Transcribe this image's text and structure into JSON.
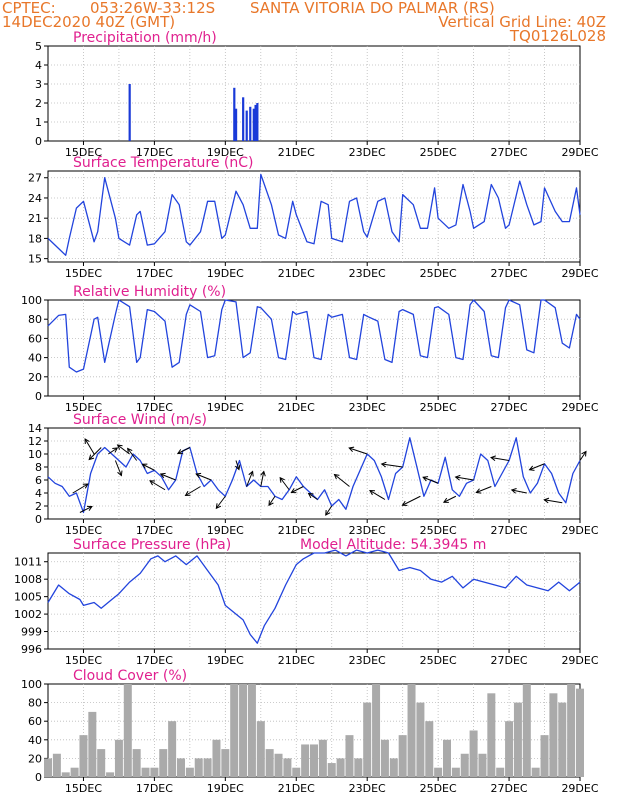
{
  "header": {
    "line1_left": "CPTEC:",
    "line1_coords": "053:26W-33:12S",
    "line1_location": "SANTA VITORIA DO PALMAR (RS)",
    "line2_left": "14DEC2020 40Z (GMT)",
    "line2_right": "Vertical Grid Line: 40Z",
    "line3_right": "TQ0126L028"
  },
  "x_ticks": [
    "15DEC",
    "17DEC",
    "19DEC",
    "21DEC",
    "23DEC",
    "25DEC",
    "27DEC",
    "29DEC"
  ],
  "colors": {
    "header": "#e8772a",
    "title": "#e0208f",
    "line": "#2244dd",
    "bar": "#1a3ad8",
    "cloud": "#aaaaaa",
    "grid": "#bbbbbb"
  },
  "chart_data": [
    {
      "type": "bar",
      "title": "Precipitation (mm/h)",
      "x_ticks": [
        "15DEC",
        "17DEC",
        "19DEC",
        "21DEC",
        "23DEC",
        "25DEC",
        "27DEC",
        "29DEC"
      ],
      "yticks": [
        "0",
        "1",
        "2",
        "3",
        "4",
        "5"
      ],
      "ylim": [
        0,
        5
      ],
      "x": [
        16.3,
        19.25,
        19.3,
        19.5,
        19.6,
        19.7,
        19.8,
        19.85,
        19.9
      ],
      "values": [
        3.0,
        2.8,
        1.7,
        2.3,
        1.6,
        1.8,
        1.7,
        1.9,
        2.0
      ]
    },
    {
      "type": "line",
      "title": "Surface Temperature (nC)",
      "x_ticks": [
        "15DEC",
        "17DEC",
        "19DEC",
        "21DEC",
        "23DEC",
        "25DEC",
        "27DEC",
        "29DEC"
      ],
      "yticks": [
        "15",
        "18",
        "21",
        "24",
        "27"
      ],
      "ylim": [
        14.5,
        28
      ],
      "x": [
        14.0,
        14.3,
        14.5,
        14.6,
        14.8,
        15.0,
        15.3,
        15.4,
        15.6,
        15.9,
        16.0,
        16.3,
        16.5,
        16.6,
        16.8,
        17.0,
        17.3,
        17.5,
        17.7,
        17.9,
        18.0,
        18.3,
        18.5,
        18.7,
        18.9,
        19.0,
        19.3,
        19.5,
        19.7,
        19.9,
        20.0,
        20.3,
        20.5,
        20.7,
        20.9,
        21.0,
        21.3,
        21.5,
        21.7,
        21.9,
        22.0,
        22.3,
        22.5,
        22.7,
        22.9,
        23.0,
        23.3,
        23.5,
        23.7,
        23.9,
        24.0,
        24.3,
        24.5,
        24.7,
        24.9,
        25.0,
        25.3,
        25.5,
        25.7,
        25.9,
        26.0,
        26.3,
        26.5,
        26.7,
        26.9,
        27.0,
        27.3,
        27.5,
        27.7,
        27.9,
        28.0,
        28.3,
        28.5,
        28.7,
        28.9,
        29.0
      ],
      "values": [
        18,
        16.5,
        15.5,
        18,
        22.5,
        23.5,
        17.5,
        19,
        27,
        21,
        18,
        17,
        21.5,
        22,
        17,
        17.2,
        19,
        24.5,
        23,
        17.5,
        17,
        19,
        23.5,
        23.5,
        18,
        18.5,
        25,
        23,
        19.5,
        19.5,
        27.5,
        23,
        18.5,
        18,
        23.5,
        21.5,
        17.5,
        17.2,
        23.5,
        23,
        18,
        17.5,
        23.5,
        24,
        19,
        18.2,
        23.5,
        24,
        19,
        17.5,
        24.5,
        23,
        19.5,
        19.5,
        25.5,
        21,
        19.5,
        20,
        26,
        22,
        19.5,
        20.5,
        26,
        24,
        19.5,
        20,
        26.5,
        23,
        20,
        20.5,
        25.5,
        22,
        20.5,
        20.5,
        25.5,
        21.5
      ]
    },
    {
      "type": "line",
      "title": "Relative Humidity (%)",
      "x_ticks": [
        "15DEC",
        "17DEC",
        "19DEC",
        "21DEC",
        "23DEC",
        "25DEC",
        "27DEC",
        "29DEC"
      ],
      "yticks": [
        "0",
        "20",
        "40",
        "60",
        "80",
        "100"
      ],
      "ylim": [
        0,
        100
      ],
      "x": [
        14.0,
        14.3,
        14.5,
        14.6,
        14.8,
        15.0,
        15.3,
        15.4,
        15.6,
        15.9,
        16.0,
        16.3,
        16.5,
        16.6,
        16.8,
        17.0,
        17.3,
        17.5,
        17.7,
        17.9,
        18.0,
        18.3,
        18.5,
        18.7,
        18.9,
        19.0,
        19.3,
        19.5,
        19.7,
        19.9,
        20.0,
        20.3,
        20.5,
        20.7,
        20.9,
        21.0,
        21.3,
        21.5,
        21.7,
        21.9,
        22.0,
        22.3,
        22.5,
        22.7,
        22.9,
        23.0,
        23.3,
        23.5,
        23.7,
        23.9,
        24.0,
        24.3,
        24.5,
        24.7,
        24.9,
        25.0,
        25.3,
        25.5,
        25.7,
        25.9,
        26.0,
        26.3,
        26.5,
        26.7,
        26.9,
        27.0,
        27.3,
        27.5,
        27.7,
        27.9,
        28.0,
        28.3,
        28.5,
        28.7,
        28.9,
        29.0
      ],
      "values": [
        73,
        84,
        85,
        30,
        25,
        28,
        80,
        82,
        35,
        85,
        100,
        93,
        35,
        40,
        90,
        88,
        78,
        30,
        35,
        85,
        95,
        88,
        40,
        42,
        90,
        100,
        98,
        40,
        45,
        93,
        92,
        80,
        40,
        38,
        88,
        85,
        88,
        40,
        38,
        85,
        82,
        85,
        40,
        38,
        85,
        83,
        78,
        38,
        35,
        88,
        90,
        85,
        42,
        40,
        92,
        93,
        85,
        40,
        38,
        95,
        100,
        88,
        42,
        40,
        92,
        100,
        95,
        48,
        45,
        100,
        100,
        92,
        55,
        50,
        85,
        80
      ]
    },
    {
      "type": "line",
      "title": "Surface Wind (m/s)",
      "x_ticks": [
        "15DEC",
        "17DEC",
        "19DEC",
        "21DEC",
        "23DEC",
        "25DEC",
        "27DEC",
        "29DEC"
      ],
      "yticks": [
        "0",
        "2",
        "4",
        "6",
        "8",
        "10",
        "12",
        "14"
      ],
      "ylim": [
        0,
        14
      ],
      "x": [
        14.0,
        14.2,
        14.4,
        14.6,
        14.8,
        15.0,
        15.2,
        15.4,
        15.6,
        15.8,
        16.0,
        16.2,
        16.4,
        16.6,
        16.8,
        17.0,
        17.2,
        17.4,
        17.6,
        17.8,
        18.0,
        18.2,
        18.4,
        18.6,
        18.8,
        19.0,
        19.2,
        19.4,
        19.6,
        19.8,
        20.0,
        20.2,
        20.4,
        20.6,
        20.8,
        21.0,
        21.2,
        21.4,
        21.6,
        21.8,
        22.0,
        22.2,
        22.4,
        22.6,
        22.8,
        23.0,
        23.2,
        23.4,
        23.6,
        23.8,
        24.0,
        24.2,
        24.4,
        24.6,
        24.8,
        25.0,
        25.2,
        25.4,
        25.6,
        25.8,
        26.0,
        26.2,
        26.4,
        26.6,
        26.8,
        27.0,
        27.2,
        27.4,
        27.6,
        27.8,
        28.0,
        28.2,
        28.4,
        28.6,
        28.8,
        29.0
      ],
      "values": [
        6.5,
        5.5,
        5,
        3.5,
        4,
        1,
        7,
        10,
        11,
        10,
        9,
        8,
        10,
        9,
        7,
        7.5,
        6.5,
        4.5,
        6,
        10.5,
        11,
        7,
        5,
        6,
        4.5,
        3.5,
        6,
        9,
        5,
        6,
        5,
        5,
        3.5,
        3,
        4.5,
        6.5,
        5,
        4,
        3,
        4.5,
        2,
        3,
        1.5,
        5,
        7.5,
        10,
        9,
        6.5,
        3,
        7,
        8,
        12.5,
        8,
        3.5,
        6,
        5.5,
        9.5,
        4.5,
        3.5,
        5.5,
        6,
        10,
        9,
        5,
        7,
        9,
        12.5,
        6.5,
        4,
        5.5,
        8.5,
        7,
        4,
        2.5,
        7,
        9
      ]
    },
    {
      "type": "line",
      "title": "Surface Pressure (hPa)",
      "annotation": "Model Altitude: 54.3945 m",
      "x_ticks": [
        "15DEC",
        "17DEC",
        "19DEC",
        "21DEC",
        "23DEC",
        "25DEC",
        "27DEC",
        "29DEC"
      ],
      "yticks": [
        "996",
        "999",
        "1002",
        "1005",
        "1008",
        "1011"
      ],
      "ylim": [
        996,
        1012.5
      ],
      "x": [
        14.0,
        14.3,
        14.6,
        14.9,
        15.0,
        15.3,
        15.5,
        15.8,
        16.0,
        16.3,
        16.6,
        16.9,
        17.1,
        17.3,
        17.6,
        17.9,
        18.2,
        18.5,
        18.8,
        19.0,
        19.3,
        19.5,
        19.7,
        19.9,
        20.1,
        20.4,
        20.7,
        21.0,
        21.2,
        21.5,
        21.8,
        22.1,
        22.4,
        22.7,
        23.0,
        23.3,
        23.6,
        23.9,
        24.2,
        24.5,
        24.8,
        25.1,
        25.4,
        25.7,
        26.0,
        26.3,
        26.6,
        26.9,
        27.2,
        27.5,
        27.8,
        28.1,
        28.4,
        28.7,
        29.0
      ],
      "values": [
        1004,
        1007,
        1005.5,
        1004.5,
        1003.5,
        1004,
        1003,
        1004.5,
        1005.5,
        1007.5,
        1009,
        1011.5,
        1012,
        1011,
        1012,
        1010.5,
        1012,
        1009.5,
        1007,
        1003.5,
        1002,
        1001,
        998.5,
        997,
        1000,
        1003,
        1007,
        1010.5,
        1011.5,
        1012.5,
        1012.5,
        1013,
        1012,
        1013,
        1012.5,
        1013,
        1012.5,
        1009.5,
        1010,
        1009.5,
        1008,
        1007.5,
        1008.5,
        1006.5,
        1008,
        1007.5,
        1007,
        1006.5,
        1008.5,
        1007,
        1006.5,
        1006,
        1007.5,
        1006,
        1007.5
      ]
    },
    {
      "type": "bar",
      "title": "Cloud Cover (%)",
      "x_ticks": [
        "15DEC",
        "17DEC",
        "19DEC",
        "21DEC",
        "23DEC",
        "25DEC",
        "27DEC",
        "29DEC"
      ],
      "yticks": [
        "0",
        "20",
        "40",
        "60",
        "80",
        "100"
      ],
      "ylim": [
        0,
        100
      ],
      "x": [
        14.0,
        14.25,
        14.5,
        14.75,
        15.0,
        15.25,
        15.5,
        15.75,
        16.0,
        16.25,
        16.5,
        16.75,
        17.0,
        17.25,
        17.5,
        17.75,
        18.0,
        18.25,
        18.5,
        18.75,
        19.0,
        19.25,
        19.5,
        19.75,
        20.0,
        20.25,
        20.5,
        20.75,
        21.0,
        21.25,
        21.5,
        21.75,
        22.0,
        22.25,
        22.5,
        22.75,
        23.0,
        23.25,
        23.5,
        23.75,
        24.0,
        24.25,
        24.5,
        24.75,
        25.0,
        25.25,
        25.5,
        25.75,
        26.0,
        26.25,
        26.5,
        26.75,
        27.0,
        27.25,
        27.5,
        27.75,
        28.0,
        28.25,
        28.5,
        28.75,
        29.0
      ],
      "values": [
        20,
        25,
        5,
        10,
        45,
        70,
        30,
        5,
        40,
        100,
        30,
        10,
        10,
        30,
        60,
        20,
        10,
        20,
        20,
        40,
        30,
        100,
        100,
        100,
        60,
        30,
        25,
        20,
        10,
        35,
        35,
        40,
        15,
        20,
        45,
        20,
        80,
        100,
        40,
        20,
        45,
        100,
        80,
        60,
        10,
        40,
        10,
        25,
        50,
        25,
        90,
        10,
        60,
        80,
        100,
        10,
        45,
        90,
        80,
        100,
        95
      ]
    }
  ],
  "wind_barbs": {
    "x": [
      14.7,
      14.9,
      15.3,
      15.5,
      15.7,
      15.9,
      16.3,
      16.5,
      17.0,
      17.3,
      17.6,
      18.0,
      18.3,
      18.6,
      19.0,
      19.3,
      19.6,
      20.0,
      20.4,
      20.8,
      21.2,
      21.6,
      22.0,
      22.5,
      23.0,
      23.5,
      24.0,
      24.5,
      25.0,
      25.5,
      26.0,
      26.5,
      27.0,
      27.5,
      28.0,
      28.5,
      29.0
    ],
    "u": [
      5,
      4,
      -3,
      -4,
      3,
      2,
      -4,
      -3,
      -4,
      -5,
      -5,
      -4,
      -5,
      -5,
      -3,
      1,
      2,
      1,
      -2,
      -3,
      -4,
      -3,
      -2,
      -5,
      -6,
      -5,
      -7,
      -6,
      -5,
      -4,
      -6,
      -5,
      -6,
      -5,
      -5,
      -6,
      2
    ],
    "v": [
      3,
      2,
      5,
      -4,
      2,
      -5,
      3,
      4,
      2,
      3,
      2,
      -2,
      -3,
      2,
      -4,
      -3,
      5,
      5,
      -3,
      4,
      -2,
      2,
      -3,
      4,
      2,
      3,
      1,
      -3,
      2,
      -2,
      1,
      -2,
      1,
      1,
      -2,
      1,
      3
    ]
  }
}
